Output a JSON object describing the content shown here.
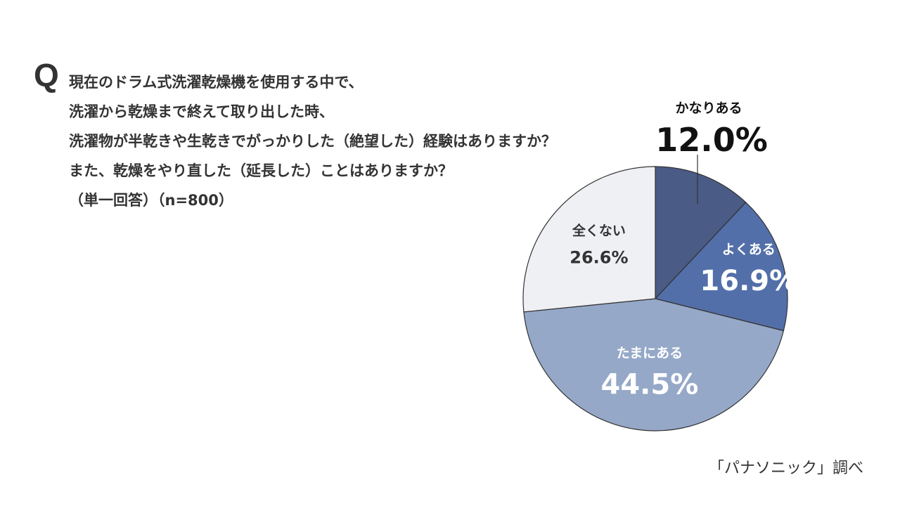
{
  "question": {
    "mark": "Q",
    "lines": [
      "現在のドラム式洗濯乾燥機を使用する中で、",
      "洗濯から乾燥まで終えて取り出した時、",
      "洗濯物が半乾きや生乾きでがっかりした（絶望した）経験はありますか？",
      "また、乾燥をやり直した（延長した）ことはありますか？"
    ],
    "note": "（単一回答）（n=800）"
  },
  "credit": "「パナソニック」調べ",
  "chart_data": {
    "type": "pie",
    "title": "",
    "start_angle_deg": 0,
    "direction": "clockwise",
    "slices": [
      {
        "label": "かなりある",
        "value": 12.0,
        "display": "12.0%",
        "color": "#4a5b85",
        "label_color": "#111111",
        "label_outside": true
      },
      {
        "label": "よくある",
        "value": 16.9,
        "display": "16.9%",
        "color": "#526fa9",
        "label_color": "#ffffff",
        "label_outside": false
      },
      {
        "label": "たまにある",
        "value": 44.5,
        "display": "44.5%",
        "color": "#95a8c8",
        "label_color": "#ffffff",
        "label_outside": false
      },
      {
        "label": "全くない",
        "value": 26.6,
        "display": "26.6%",
        "color": "#eef0f4",
        "label_color": "#333333",
        "label_outside": false
      }
    ],
    "stroke_color": "#333333"
  }
}
